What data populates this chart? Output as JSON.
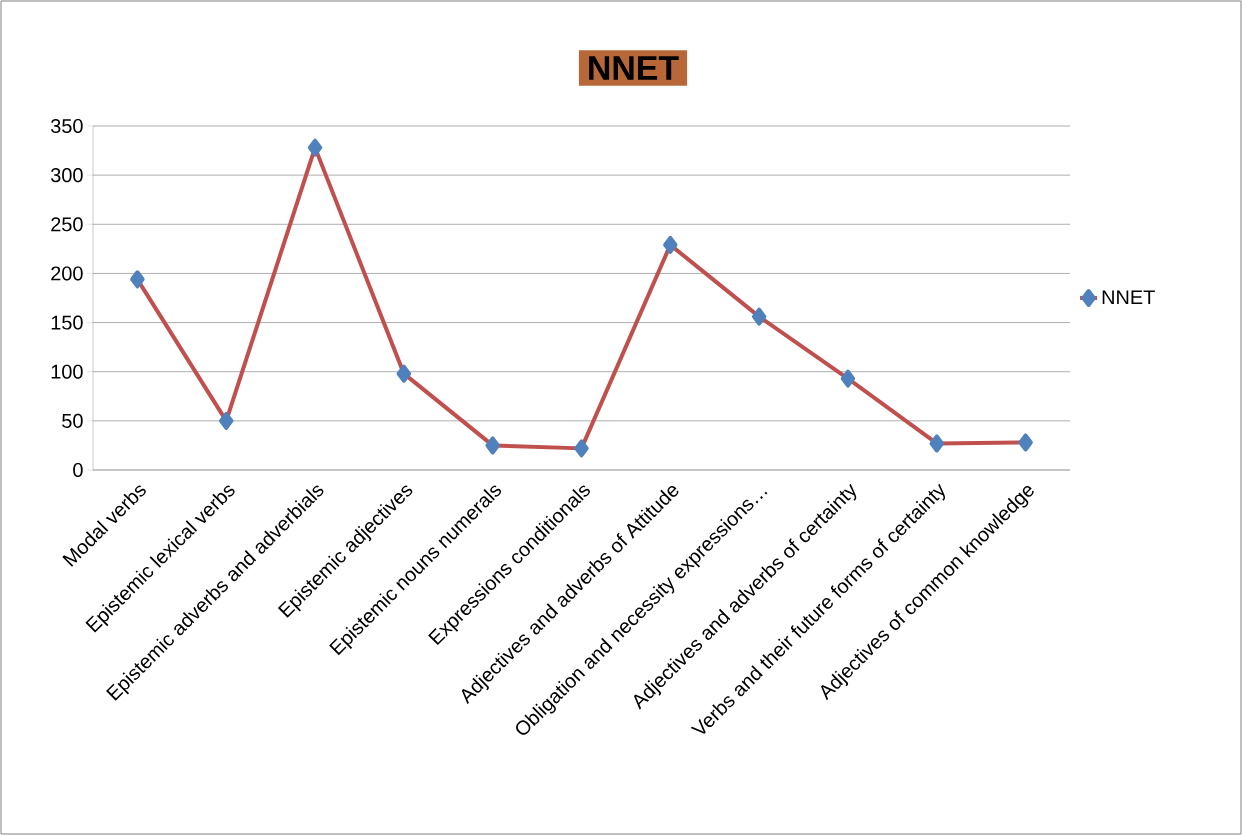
{
  "chart_data": {
    "type": "line",
    "title": "NNET",
    "categories": [
      "Modal verbs",
      "Epistemic lexical verbs",
      "Epistemic adverbs and adverbials",
      "Epistemic adjectives",
      "Epistemic nouns  numerals",
      "Expressions conditionals",
      "Adjectives and adverbs of Attitude",
      "Obligation and necessity expressions…",
      "Adjectives and adverbs of certainty",
      "Verbs and their future forms of certainty",
      "Adjectives of common knowledge"
    ],
    "series": [
      {
        "name": "NNET",
        "color": "#c0504d",
        "values": [
          194,
          50,
          328,
          98,
          25,
          22,
          229,
          156,
          93,
          27,
          28
        ]
      }
    ],
    "ylim": [
      0,
      350
    ],
    "yticks": [
      0,
      50,
      100,
      150,
      200,
      250,
      300,
      350
    ],
    "grid": "y",
    "legend": "right",
    "marker": "diamond",
    "line_style": "solid"
  }
}
